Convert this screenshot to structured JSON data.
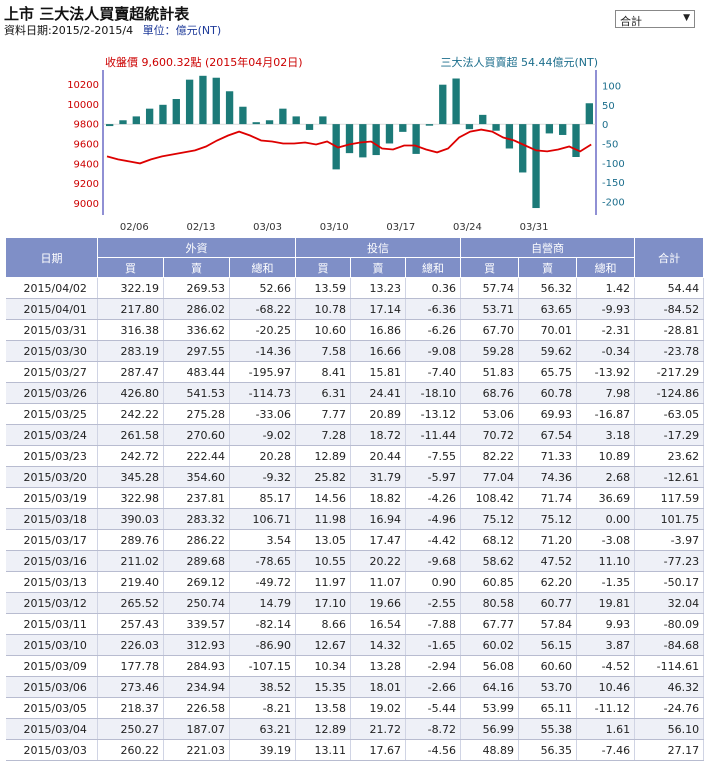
{
  "page": {
    "title": "上市 三大法人買賣超統計表",
    "date_label": "資料日期:2015/2-2015/4",
    "unit_label": "單位：億元(NT)",
    "select_value": "合計",
    "select_arrow": "▼"
  },
  "chart_data": {
    "type": "bar",
    "left_legend": "收盤價 9,600.32點 (2015年04月02日)",
    "right_legend": "三大法人買賣超 54.44億元(NT)",
    "colors": {
      "bar": "#1c7a78",
      "line": "#dd0000",
      "axis_left": "#cc0000",
      "axis_right": "#1c6e8c",
      "blue_axis": "#2222aa"
    },
    "x_tick_labels": [
      "02/06",
      "02/13",
      "03/03",
      "03/10",
      "03/17",
      "03/24",
      "03/31"
    ],
    "x_tick_index": [
      2,
      7,
      12,
      17,
      22,
      27,
      32
    ],
    "left_axis": {
      "ticks": [
        9000,
        9200,
        9400,
        9600,
        9800,
        10000,
        10200
      ],
      "range": [
        8880,
        10340
      ]
    },
    "right_axis": {
      "ticks": [
        100,
        50,
        0,
        -50,
        -100,
        -150,
        -200
      ],
      "range": [
        -235,
        140
      ]
    },
    "net_values": [
      -5,
      10,
      20,
      40,
      50,
      65,
      115,
      125,
      120,
      85,
      45,
      5,
      10,
      40,
      20,
      -15,
      20,
      -117,
      -75,
      -86,
      -80,
      -50,
      -20,
      -77,
      -4,
      102,
      118,
      -13,
      24,
      -17,
      -63,
      -125,
      -217,
      -24,
      -28,
      -85,
      54
    ],
    "close_values": [
      9470,
      9440,
      9420,
      9400,
      9440,
      9470,
      9490,
      9510,
      9530,
      9570,
      9630,
      9680,
      9720,
      9680,
      9630,
      9620,
      9600,
      9600,
      9610,
      9590,
      9620,
      9560,
      9590,
      9610,
      9620,
      9550,
      9540,
      9580,
      9580,
      9540,
      9510,
      9550,
      9660,
      9720,
      9740,
      9720,
      9660,
      9630,
      9580,
      9530,
      9520,
      9540,
      9570,
      9520,
      9590
    ]
  },
  "table": {
    "group_headers": [
      "日期",
      "外資",
      "投信",
      "自營商",
      "合計"
    ],
    "sub_headers": [
      "買",
      "賣",
      "總和",
      "買",
      "賣",
      "總和",
      "買",
      "賣",
      "總和"
    ],
    "rows": [
      [
        "2015/04/02",
        "322.19",
        "269.53",
        "52.66",
        "13.59",
        "13.23",
        "0.36",
        "57.74",
        "56.32",
        "1.42",
        "54.44"
      ],
      [
        "2015/04/01",
        "217.80",
        "286.02",
        "-68.22",
        "10.78",
        "17.14",
        "-6.36",
        "53.71",
        "63.65",
        "-9.93",
        "-84.52"
      ],
      [
        "2015/03/31",
        "316.38",
        "336.62",
        "-20.25",
        "10.60",
        "16.86",
        "-6.26",
        "67.70",
        "70.01",
        "-2.31",
        "-28.81"
      ],
      [
        "2015/03/30",
        "283.19",
        "297.55",
        "-14.36",
        "7.58",
        "16.66",
        "-9.08",
        "59.28",
        "59.62",
        "-0.34",
        "-23.78"
      ],
      [
        "2015/03/27",
        "287.47",
        "483.44",
        "-195.97",
        "8.41",
        "15.81",
        "-7.40",
        "51.83",
        "65.75",
        "-13.92",
        "-217.29"
      ],
      [
        "2015/03/26",
        "426.80",
        "541.53",
        "-114.73",
        "6.31",
        "24.41",
        "-18.10",
        "68.76",
        "60.78",
        "7.98",
        "-124.86"
      ],
      [
        "2015/03/25",
        "242.22",
        "275.28",
        "-33.06",
        "7.77",
        "20.89",
        "-13.12",
        "53.06",
        "69.93",
        "-16.87",
        "-63.05"
      ],
      [
        "2015/03/24",
        "261.58",
        "270.60",
        "-9.02",
        "7.28",
        "18.72",
        "-11.44",
        "70.72",
        "67.54",
        "3.18",
        "-17.29"
      ],
      [
        "2015/03/23",
        "242.72",
        "222.44",
        "20.28",
        "12.89",
        "20.44",
        "-7.55",
        "82.22",
        "71.33",
        "10.89",
        "23.62"
      ],
      [
        "2015/03/20",
        "345.28",
        "354.60",
        "-9.32",
        "25.82",
        "31.79",
        "-5.97",
        "77.04",
        "74.36",
        "2.68",
        "-12.61"
      ],
      [
        "2015/03/19",
        "322.98",
        "237.81",
        "85.17",
        "14.56",
        "18.82",
        "-4.26",
        "108.42",
        "71.74",
        "36.69",
        "117.59"
      ],
      [
        "2015/03/18",
        "390.03",
        "283.32",
        "106.71",
        "11.98",
        "16.94",
        "-4.96",
        "75.12",
        "75.12",
        "0.00",
        "101.75"
      ],
      [
        "2015/03/17",
        "289.76",
        "286.22",
        "3.54",
        "13.05",
        "17.47",
        "-4.42",
        "68.12",
        "71.20",
        "-3.08",
        "-3.97"
      ],
      [
        "2015/03/16",
        "211.02",
        "289.68",
        "-78.65",
        "10.55",
        "20.22",
        "-9.68",
        "58.62",
        "47.52",
        "11.10",
        "-77.23"
      ],
      [
        "2015/03/13",
        "219.40",
        "269.12",
        "-49.72",
        "11.97",
        "11.07",
        "0.90",
        "60.85",
        "62.20",
        "-1.35",
        "-50.17"
      ],
      [
        "2015/03/12",
        "265.52",
        "250.74",
        "14.79",
        "17.10",
        "19.66",
        "-2.55",
        "80.58",
        "60.77",
        "19.81",
        "32.04"
      ],
      [
        "2015/03/11",
        "257.43",
        "339.57",
        "-82.14",
        "8.66",
        "16.54",
        "-7.88",
        "67.77",
        "57.84",
        "9.93",
        "-80.09"
      ],
      [
        "2015/03/10",
        "226.03",
        "312.93",
        "-86.90",
        "12.67",
        "14.32",
        "-1.65",
        "60.02",
        "56.15",
        "3.87",
        "-84.68"
      ],
      [
        "2015/03/09",
        "177.78",
        "284.93",
        "-107.15",
        "10.34",
        "13.28",
        "-2.94",
        "56.08",
        "60.60",
        "-4.52",
        "-114.61"
      ],
      [
        "2015/03/06",
        "273.46",
        "234.94",
        "38.52",
        "15.35",
        "18.01",
        "-2.66",
        "64.16",
        "53.70",
        "10.46",
        "46.32"
      ],
      [
        "2015/03/05",
        "218.37",
        "226.58",
        "-8.21",
        "13.58",
        "19.02",
        "-5.44",
        "53.99",
        "65.11",
        "-11.12",
        "-24.76"
      ],
      [
        "2015/03/04",
        "250.27",
        "187.07",
        "63.21",
        "12.89",
        "21.72",
        "-8.72",
        "56.99",
        "55.38",
        "1.61",
        "56.10"
      ],
      [
        "2015/03/03",
        "260.22",
        "221.03",
        "39.19",
        "13.11",
        "17.67",
        "-4.56",
        "48.89",
        "56.35",
        "-7.46",
        "27.17"
      ]
    ]
  }
}
